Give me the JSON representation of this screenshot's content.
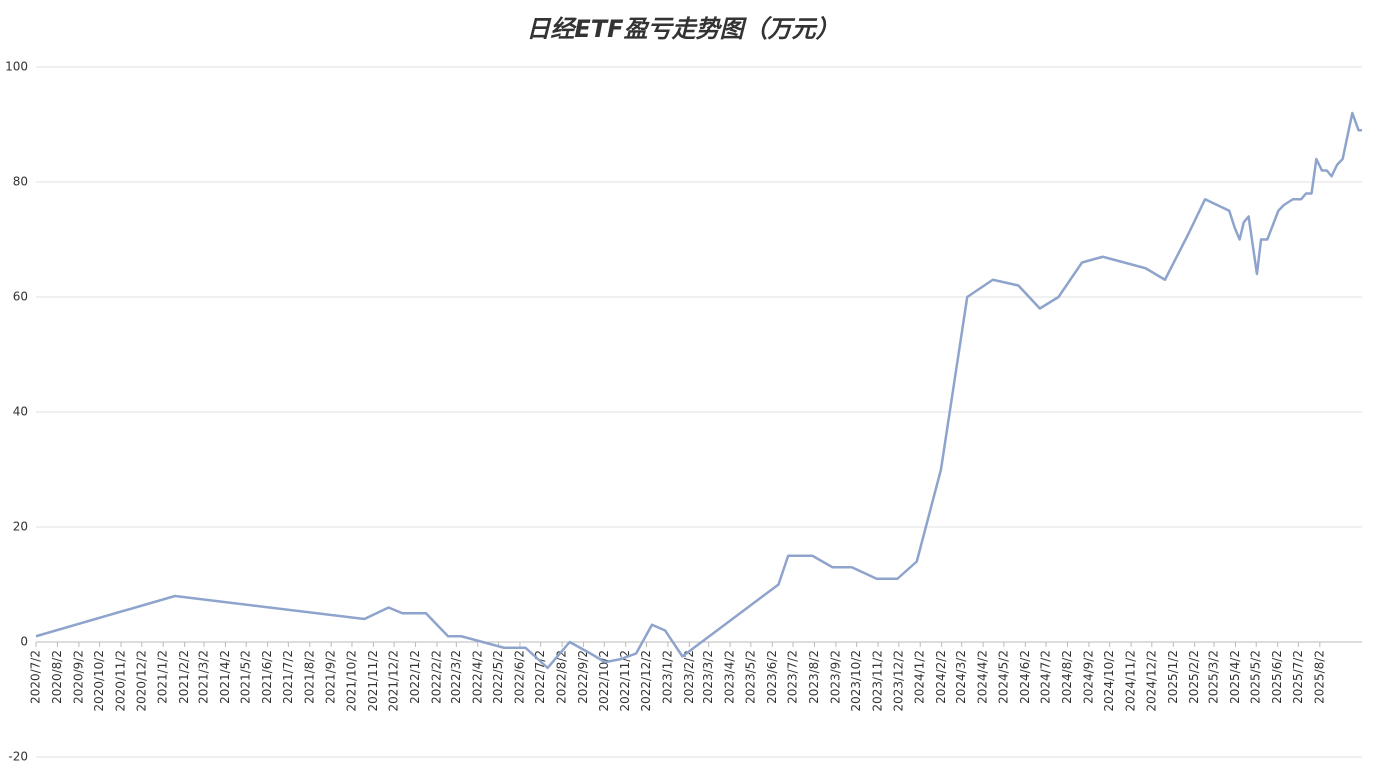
{
  "chart_data": {
    "type": "line",
    "title": "日经ETF盈亏走势图（万元）",
    "series": [
      {
        "name": "盈亏",
        "color": "#8ea4cc",
        "x": [
          "2020/7/2",
          "2021/1/19",
          "2021/10/20",
          "2021/11/24",
          "2021/12/14",
          "2022/1/17",
          "2022/2/18",
          "2022/3/9",
          "2022/5/10",
          "2022/6/10",
          "2022/7/12",
          "2022/8/13",
          "2022/9/12",
          "2022/10/3",
          "2022/10/25",
          "2022/11/17",
          "2022/12/10",
          "2022/12/29",
          "2023/1/23",
          "2023/6/11",
          "2023/6/25",
          "2023/7/30",
          "2023/8/28",
          "2023/9/25",
          "2023/10/31",
          "2023/11/30",
          "2023/12/28",
          "2024/2/1",
          "2024/3/10",
          "2024/4/16",
          "2024/5/23",
          "2024/6/23",
          "2024/7/20",
          "2024/8/23",
          "2024/9/22",
          "2024/11/23",
          "2024/12/21",
          "2025/1/24",
          "2025/2/17",
          "2025/3/24",
          "2025/4/1",
          "2025/4/8",
          "2025/4/14",
          "2025/4/21",
          "2025/5/3",
          "2025/5/9",
          "2025/5/18",
          "2025/6/3",
          "2025/6/11",
          "2025/6/24",
          "2025/7/6",
          "2025/7/13",
          "2025/7/21",
          "2025/7/28",
          "2025/8/5",
          "2025/8/12",
          "2025/8/19",
          "2025/8/27",
          "2025/9/4",
          "2025/9/18",
          "2025/9/27",
          "2025/10/2"
        ],
        "values": [
          1,
          8,
          4,
          6,
          5,
          5,
          1,
          1,
          -1,
          -1,
          -4.5,
          0,
          -2,
          -3.5,
          -3,
          -2,
          3,
          2,
          -2.5,
          10,
          15,
          15,
          13,
          13,
          11,
          11,
          14,
          30,
          60,
          63,
          62,
          58,
          60,
          66,
          67,
          65,
          63,
          71,
          77,
          75,
          72,
          70,
          73,
          74,
          64,
          70,
          70,
          75,
          76,
          77,
          77,
          78,
          78,
          84,
          82,
          82,
          81,
          83,
          84,
          92,
          89,
          89
        ]
      }
    ],
    "xlim": [
      "2020/7/2",
      "2025/10/2"
    ],
    "xticks": [
      "2020/7/2",
      "2020/8/2",
      "2020/9/2",
      "2020/10/2",
      "2020/11/2",
      "2020/12/2",
      "2021/1/2",
      "2021/2/2",
      "2021/3/2",
      "2021/4/2",
      "2021/5/2",
      "2021/6/2",
      "2021/7/2",
      "2021/8/2",
      "2021/9/2",
      "2021/10/2",
      "2021/11/2",
      "2021/12/2",
      "2022/1/2",
      "2022/2/2",
      "2022/3/2",
      "2022/4/2",
      "2022/5/2",
      "2022/6/2",
      "2022/7/2",
      "2022/8/2",
      "2022/9/2",
      "2022/10/2",
      "2022/11/2",
      "2022/12/2",
      "2023/1/2",
      "2023/2/2",
      "2023/3/2",
      "2023/4/2",
      "2023/5/2",
      "2023/6/2",
      "2023/7/2",
      "2023/8/2",
      "2023/9/2",
      "2023/10/2",
      "2023/11/2",
      "2023/12/2",
      "2024/1/2",
      "2024/2/2",
      "2024/3/2",
      "2024/4/2",
      "2024/5/2",
      "2024/6/2",
      "2024/7/2",
      "2024/8/2",
      "2024/9/2",
      "2024/10/2",
      "2024/11/2",
      "2024/12/2",
      "2025/1/2",
      "2025/2/2",
      "2025/3/2",
      "2025/4/2",
      "2025/5/2",
      "2025/6/2",
      "2025/7/2",
      "2025/8/2"
    ],
    "ylim": [
      -20,
      100
    ],
    "yticks": [
      -20,
      0,
      20,
      40,
      60,
      80,
      100
    ],
    "grid": true
  }
}
